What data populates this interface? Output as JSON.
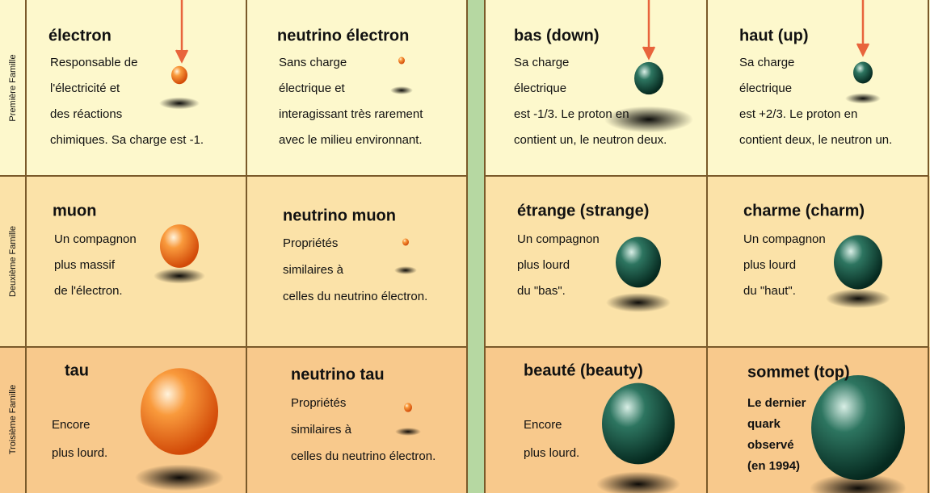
{
  "families": [
    "Première Famille",
    "Deuxième Famille",
    "Troisième Famille"
  ],
  "leptons": [
    [
      {
        "title": "électron",
        "lines": [
          "Responsable de",
          "l'électricité et",
          "des réactions",
          "chimiques. Sa charge est -1."
        ]
      },
      {
        "title": "neutrino électron",
        "lines": [
          "Sans charge",
          "électrique et",
          "interagissant très rarement",
          "avec le milieu environnant."
        ]
      }
    ],
    [
      {
        "title": "muon",
        "lines": [
          "Un compagnon",
          "plus massif",
          "de l'électron."
        ]
      },
      {
        "title": "neutrino muon",
        "lines": [
          "Propriétés",
          "similaires à",
          "celles du neutrino électron."
        ]
      }
    ],
    [
      {
        "title": "tau",
        "lines": [
          "Encore",
          "plus lourd."
        ]
      },
      {
        "title": "neutrino tau",
        "lines": [
          "Propriétés",
          "similaires à",
          "celles du neutrino électron."
        ]
      }
    ]
  ],
  "quarks": [
    [
      {
        "title": "bas (down)",
        "lines": [
          "Sa charge",
          "électrique",
          "est -1/3. Le proton en",
          "contient un, le neutron deux."
        ]
      },
      {
        "title": "haut (up)",
        "lines": [
          "Sa charge",
          "électrique",
          "est +2/3. Le proton en",
          "contient deux, le neutron un."
        ]
      }
    ],
    [
      {
        "title": "étrange (strange)",
        "lines": [
          "Un compagnon",
          "plus lourd",
          "du \"bas\"."
        ]
      },
      {
        "title": "charme (charm)",
        "lines": [
          "Un compagnon",
          "plus lourd",
          "du \"haut\"."
        ]
      }
    ],
    [
      {
        "title": "beauté (beauty)",
        "lines": [
          "Encore",
          "plus lourd."
        ]
      },
      {
        "title": "sommet (top)",
        "lines": [
          "Le dernier",
          "quark",
          "observé",
          "(en 1994)"
        ]
      }
    ]
  ]
}
